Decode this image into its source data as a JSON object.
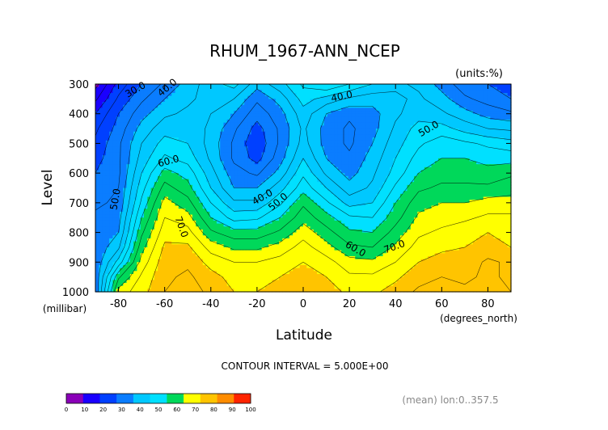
{
  "chart_data": {
    "type": "heatmap",
    "title": "RHUM_1967-ANN_NCEP",
    "units_note": "(units:%)",
    "xlabel": "Latitude",
    "ylabel": "Level",
    "x_unit": "(degrees_north)",
    "y_unit": "(millibar)",
    "xlim": [
      -90,
      90
    ],
    "ylim": [
      1000,
      300
    ],
    "x_ticks": [
      "-80",
      "-60",
      "-40",
      "-20",
      "0",
      "20",
      "40",
      "60",
      "80"
    ],
    "x_tick_values": [
      -80,
      -60,
      -40,
      -20,
      0,
      20,
      40,
      60,
      80
    ],
    "y_ticks": [
      "300",
      "400",
      "500",
      "600",
      "700",
      "800",
      "900",
      "1000"
    ],
    "y_tick_values": [
      300,
      400,
      500,
      600,
      700,
      800,
      900,
      1000
    ],
    "contour_interval_text": "CONTOUR INTERVAL = 5.000E+00",
    "footnote": "(mean) lon:0..357.5",
    "colorbar": {
      "labels": [
        "0",
        "10",
        "20",
        "30",
        "40",
        "50",
        "60",
        "70",
        "80",
        "90",
        "100"
      ],
      "colors": [
        "#8a00b8",
        "#1a00ff",
        "#0040ff",
        "#0a7dff",
        "#00c8ff",
        "#00e0ff",
        "#00d85a",
        "#ffff00",
        "#ffc400",
        "#ff8c00",
        "#ff2400"
      ]
    },
    "levels": [
      300,
      350,
      400,
      450,
      500,
      550,
      600,
      650,
      700,
      750,
      800,
      850,
      900,
      950,
      1000
    ],
    "lats": [
      -90,
      -80,
      -70,
      -60,
      -50,
      -40,
      -30,
      -20,
      -10,
      0,
      10,
      20,
      30,
      40,
      50,
      60,
      70,
      80,
      90
    ],
    "values": [
      [
        8,
        22,
        30,
        36,
        42,
        48,
        52,
        42,
        48,
        56,
        60,
        55,
        50,
        46,
        44,
        38,
        32,
        30,
        28
      ],
      [
        14,
        26,
        34,
        40,
        44,
        47,
        45,
        36,
        42,
        52,
        48,
        44,
        42,
        44,
        46,
        42,
        36,
        33,
        30
      ],
      [
        20,
        30,
        38,
        44,
        46,
        45,
        40,
        32,
        38,
        48,
        40,
        36,
        38,
        44,
        48,
        46,
        42,
        38,
        36
      ],
      [
        24,
        32,
        42,
        48,
        48,
        44,
        36,
        28,
        36,
        46,
        38,
        34,
        38,
        46,
        52,
        52,
        48,
        45,
        44
      ],
      [
        26,
        34,
        45,
        52,
        50,
        43,
        34,
        26,
        36,
        47,
        38,
        34,
        40,
        48,
        54,
        58,
        56,
        54,
        52
      ],
      [
        28,
        34,
        47,
        56,
        53,
        44,
        34,
        28,
        38,
        50,
        40,
        36,
        42,
        50,
        57,
        60,
        60,
        58,
        58
      ],
      [
        30,
        34,
        50,
        62,
        58,
        47,
        37,
        34,
        42,
        54,
        44,
        38,
        44,
        52,
        60,
        63,
        63,
        62,
        64
      ],
      [
        32,
        35,
        53,
        67,
        62,
        50,
        40,
        40,
        48,
        58,
        50,
        42,
        46,
        56,
        64,
        66,
        66,
        66,
        68
      ],
      [
        34,
        36,
        56,
        72,
        67,
        55,
        46,
        46,
        54,
        64,
        56,
        48,
        50,
        60,
        68,
        70,
        70,
        72,
        72
      ],
      [
        36,
        38,
        60,
        75,
        72,
        60,
        53,
        54,
        60,
        68,
        62,
        56,
        55,
        63,
        71,
        73,
        74,
        76,
        76
      ],
      [
        36,
        40,
        64,
        78,
        77,
        66,
        62,
        62,
        66,
        73,
        67,
        61,
        60,
        67,
        74,
        76,
        78,
        80,
        78
      ],
      [
        36,
        44,
        68,
        81,
        81,
        73,
        69,
        69,
        72,
        77,
        72,
        66,
        65,
        71,
        77,
        79,
        80,
        82,
        80
      ],
      [
        36,
        52,
        72,
        83,
        84,
        78,
        75,
        75,
        77,
        80,
        77,
        72,
        71,
        75,
        80,
        82,
        82,
        86,
        84
      ],
      [
        36,
        64,
        76,
        84,
        86,
        82,
        78,
        78,
        80,
        82,
        80,
        76,
        76,
        79,
        83,
        85,
        84,
        86,
        84
      ],
      [
        36,
        72,
        78,
        85,
        87,
        84,
        80,
        80,
        82,
        84,
        82,
        79,
        79,
        82,
        86,
        87,
        86,
        86,
        85
      ]
    ],
    "contour_labels": [
      "30.0",
      "40.0",
      "40.0",
      "40.0",
      "50.0",
      "50.0",
      "50.0",
      "60.0",
      "60.0",
      "70.0",
      "70.0"
    ]
  }
}
